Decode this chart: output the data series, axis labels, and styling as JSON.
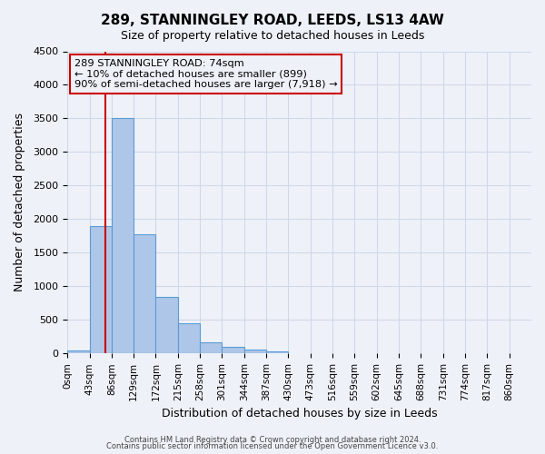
{
  "title": "289, STANNINGLEY ROAD, LEEDS, LS13 4AW",
  "subtitle": "Size of property relative to detached houses in Leeds",
  "xlabel": "Distribution of detached houses by size in Leeds",
  "ylabel": "Number of detached properties",
  "bar_labels": [
    "0sqm",
    "43sqm",
    "86sqm",
    "129sqm",
    "172sqm",
    "215sqm",
    "258sqm",
    "301sqm",
    "344sqm",
    "387sqm",
    "430sqm",
    "473sqm",
    "516sqm",
    "559sqm",
    "602sqm",
    "645sqm",
    "688sqm",
    "731sqm",
    "774sqm",
    "817sqm",
    "860sqm"
  ],
  "bar_values": [
    40,
    1900,
    3500,
    1775,
    840,
    450,
    170,
    95,
    55,
    35,
    0,
    0,
    0,
    0,
    0,
    0,
    0,
    0,
    0,
    0,
    0
  ],
  "bar_color": "#aec6e8",
  "bar_edgecolor": "#5b9bd5",
  "grid_color": "#d0d8e8",
  "background_color": "#eef2f8",
  "vline_x": 74,
  "vline_color": "#cc0000",
  "annotation_line1": "289 STANNINGLEY ROAD: 74sqm",
  "annotation_line2": "← 10% of detached houses are smaller (899)",
  "annotation_line3": "90% of semi-detached houses are larger (7,918) →",
  "ylim": [
    0,
    4500
  ],
  "bin_width": 43,
  "footnote1": "Contains HM Land Registry data © Crown copyright and database right 2024.",
  "footnote2": "Contains public sector information licensed under the Open Government Licence v3.0."
}
